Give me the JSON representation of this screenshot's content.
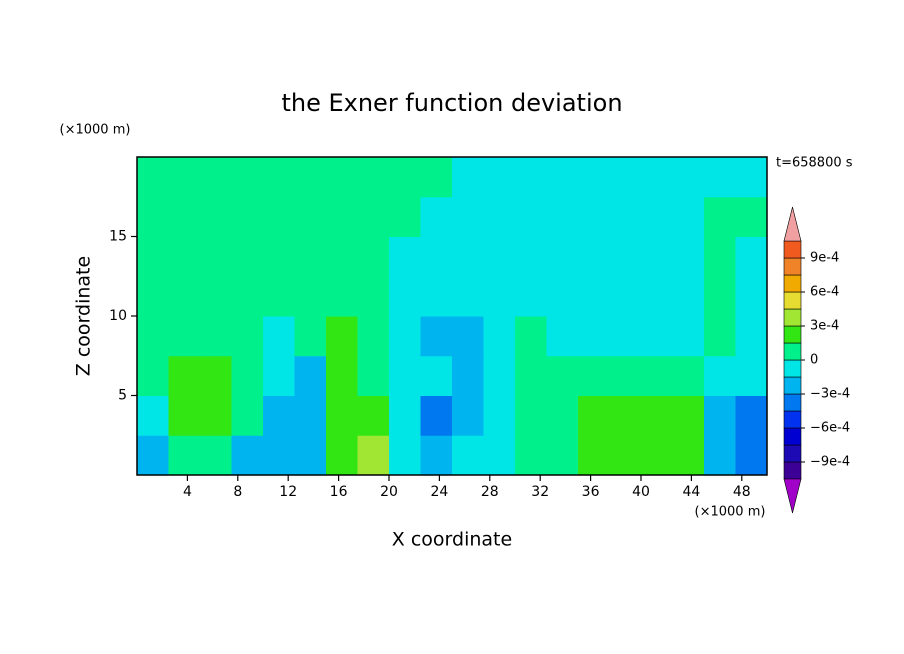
{
  "chart_data": {
    "type": "contour",
    "title": "the Exner function deviation",
    "xlabel": "X coordinate",
    "ylabel": "Z coordinate",
    "xunit": "(×1000 m)",
    "yunit": "(×1000 m)",
    "annotation": "t=658800 s",
    "xlim": [
      0,
      50
    ],
    "ylim": [
      0,
      20
    ],
    "xticks": [
      4,
      8,
      12,
      16,
      20,
      24,
      28,
      32,
      36,
      40,
      44,
      48
    ],
    "yticks": [
      5,
      10,
      15
    ],
    "x": [
      1.25,
      3.75,
      6.25,
      8.75,
      11.25,
      13.75,
      16.25,
      18.75,
      21.25,
      23.75,
      26.25,
      28.75,
      31.25,
      33.75,
      36.25,
      38.75,
      41.25,
      43.75,
      46.25,
      48.75
    ],
    "y": [
      1.25,
      3.75,
      6.25,
      8.75,
      11.25,
      13.75,
      16.25,
      18.75
    ],
    "z": [
      [
        -0.0002,
        7e-05,
        7e-05,
        -0.0002,
        -0.0002,
        -0.0002,
        0.0002,
        0.0004,
        -7e-05,
        -0.0002,
        -7e-05,
        -7e-05,
        7e-05,
        7e-05,
        0.0002,
        0.0002,
        0.0002,
        0.0002,
        -0.0002,
        -0.0004
      ],
      [
        -7e-05,
        0.0002,
        0.0002,
        7e-05,
        -0.0002,
        -0.0002,
        0.0002,
        0.0002,
        -7e-05,
        -0.0004,
        -0.0002,
        -7e-05,
        7e-05,
        7e-05,
        0.0002,
        0.0002,
        0.0002,
        0.0002,
        -0.0002,
        -0.0004
      ],
      [
        7e-05,
        0.0002,
        0.0002,
        7e-05,
        -7e-05,
        -0.0002,
        0.0002,
        7e-05,
        -7e-05,
        -7e-05,
        -0.0002,
        -7e-05,
        7e-05,
        7e-05,
        7e-05,
        7e-05,
        7e-05,
        7e-05,
        -7e-05,
        -7e-05
      ],
      [
        7e-05,
        7e-05,
        7e-05,
        7e-05,
        -7e-05,
        7e-05,
        0.0002,
        7e-05,
        -7e-05,
        -0.0002,
        -0.0002,
        -7e-05,
        7e-05,
        -7e-05,
        -7e-05,
        -7e-05,
        -7e-05,
        -7e-05,
        7e-05,
        -7e-05
      ],
      [
        7e-05,
        7e-05,
        7e-05,
        7e-05,
        7e-05,
        7e-05,
        7e-05,
        7e-05,
        -7e-05,
        -7e-05,
        -7e-05,
        -7e-05,
        -7e-05,
        -7e-05,
        -7e-05,
        -7e-05,
        -7e-05,
        -7e-05,
        7e-05,
        -7e-05
      ],
      [
        7e-05,
        7e-05,
        7e-05,
        7e-05,
        7e-05,
        7e-05,
        7e-05,
        7e-05,
        -7e-05,
        -7e-05,
        -7e-05,
        -7e-05,
        -7e-05,
        -7e-05,
        -7e-05,
        -7e-05,
        -7e-05,
        -7e-05,
        7e-05,
        -7e-05
      ],
      [
        7e-05,
        7e-05,
        7e-05,
        7e-05,
        7e-05,
        7e-05,
        7e-05,
        7e-05,
        7e-05,
        -7e-05,
        -7e-05,
        -7e-05,
        -7e-05,
        -7e-05,
        -7e-05,
        -7e-05,
        -7e-05,
        -7e-05,
        7e-05,
        7e-05
      ],
      [
        7e-05,
        7e-05,
        7e-05,
        7e-05,
        7e-05,
        7e-05,
        7e-05,
        7e-05,
        7e-05,
        7e-05,
        -7e-05,
        -7e-05,
        -7e-05,
        -7e-05,
        -7e-05,
        -7e-05,
        -7e-05,
        -7e-05,
        -7e-05,
        -7e-05
      ]
    ],
    "levels": [
      -0.00105,
      -0.0009,
      -0.00075,
      -0.0006,
      -0.00045,
      -0.0003,
      -0.00015,
      0,
      0.00015,
      0.0003,
      0.00045,
      0.0006,
      0.00075,
      0.0009,
      0.00105
    ],
    "colors": [
      "#3c0096",
      "#1e0ab4",
      "#0000d2",
      "#0032f0",
      "#0078f0",
      "#00b4f0",
      "#00e6e6",
      "#00f08c",
      "#32e614",
      "#a0e632",
      "#e6dc32",
      "#f0aa00",
      "#f08228",
      "#f05a1e",
      "#e61414"
    ],
    "under_color": "#a000c8",
    "over_color": "#f0a0a0",
    "colorbar_ticks": [
      {
        "value": 0.0009,
        "label": "9e-4"
      },
      {
        "value": 0.0006,
        "label": "6e-4"
      },
      {
        "value": 0.0003,
        "label": "3e-4"
      },
      0,
      {
        "value": -0.0003,
        "label": "−3e-4"
      },
      {
        "value": -0.0006,
        "label": "−6e-4"
      },
      {
        "value": -0.0009,
        "label": "−9e-4"
      }
    ]
  }
}
